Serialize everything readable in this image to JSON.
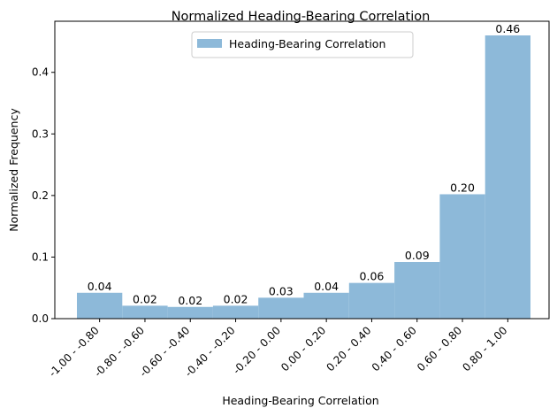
{
  "chart_data": {
    "type": "bar",
    "title": "Normalized Heading-Bearing Correlation",
    "xlabel": "Heading-Bearing Correlation",
    "ylabel": "Normalized Frequency",
    "categories": [
      "-1.00 - -0.80",
      "-0.80 - -0.60",
      "-0.60 - -0.40",
      "-0.40 - -0.20",
      "-0.20 - 0.00",
      "0.00 - 0.20",
      "0.20 - 0.40",
      "0.40 - 0.60",
      "0.60 - 0.80",
      "0.80 - 1.00"
    ],
    "values": [
      0.042,
      0.021,
      0.019,
      0.021,
      0.034,
      0.042,
      0.058,
      0.092,
      0.202,
      0.46
    ],
    "data_labels": [
      "0.04",
      "0.02",
      "0.02",
      "0.02",
      "0.03",
      "0.04",
      "0.06",
      "0.09",
      "0.20",
      "0.46"
    ],
    "series": [
      {
        "name": "Heading-Bearing Correlation",
        "values": [
          0.042,
          0.021,
          0.019,
          0.021,
          0.034,
          0.042,
          0.058,
          0.092,
          0.202,
          0.46
        ]
      }
    ],
    "ylim": [
      0,
      0.483
    ],
    "yticks": [
      0.0,
      0.1,
      0.2,
      0.3,
      0.4
    ],
    "ytick_labels": [
      "0.0",
      "0.1",
      "0.2",
      "0.3",
      "0.4"
    ],
    "legend": {
      "position": "top-center",
      "label": "Heading-Bearing Correlation"
    },
    "grid": false,
    "bar_color": "#8db9d9"
  }
}
